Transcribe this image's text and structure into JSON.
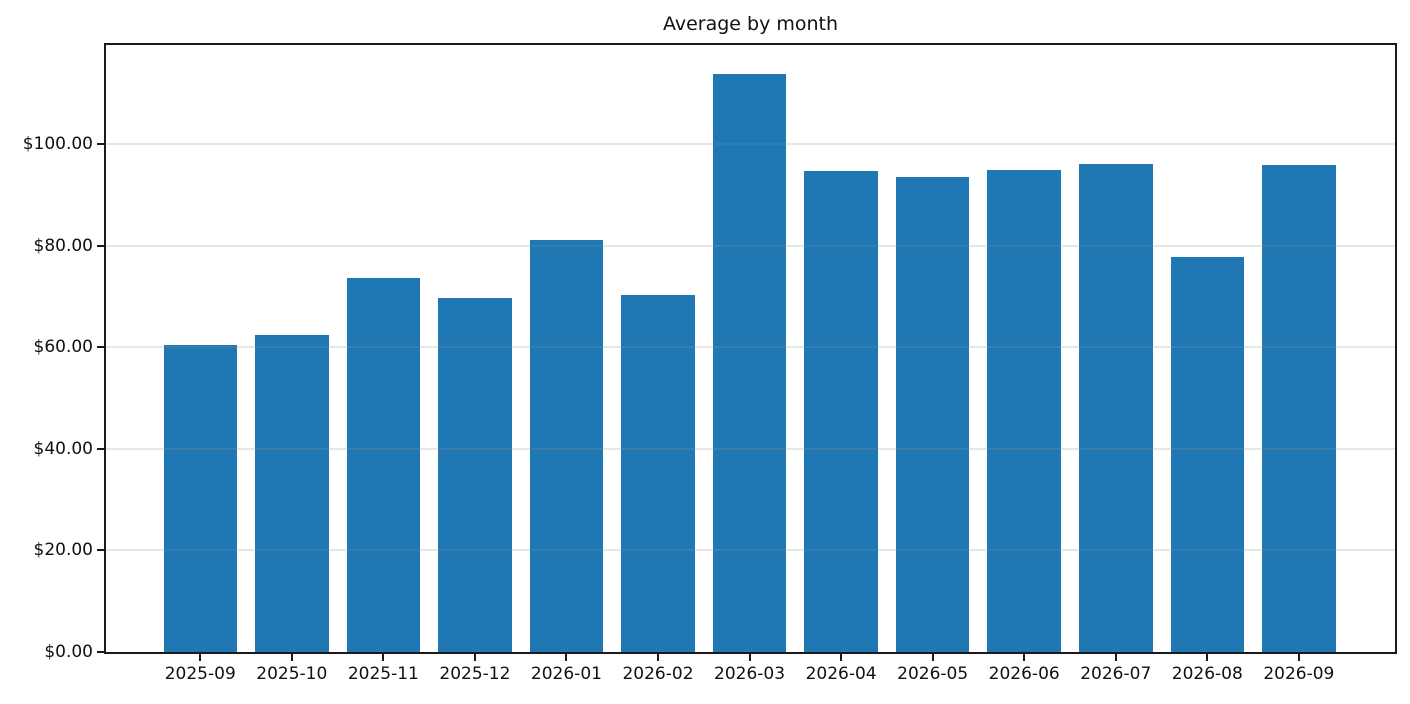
{
  "chart_data": {
    "type": "bar",
    "title": "Average by month",
    "xlabel": "",
    "ylabel": "",
    "categories": [
      "2025-09",
      "2025-10",
      "2025-11",
      "2025-12",
      "2026-01",
      "2026-02",
      "2026-03",
      "2026-04",
      "2026-05",
      "2026-06",
      "2026-07",
      "2026-08",
      "2026-09"
    ],
    "values": [
      60.5,
      62.4,
      73.6,
      69.7,
      81.2,
      70.3,
      113.8,
      94.6,
      93.5,
      94.9,
      96.1,
      77.8,
      95.8
    ],
    "ytick_values": [
      0,
      20,
      40,
      60,
      80,
      100
    ],
    "ytick_labels": [
      "$0.00",
      "$20.00",
      "$40.00",
      "$60.00",
      "$80.00",
      "$100.00"
    ],
    "ylim": [
      0,
      119.5
    ],
    "grid": "horizontal-over-bars",
    "legend": "none",
    "bar_color": "#1f77b4",
    "grid_color": "#e9e9e9",
    "spine_color": "#1a1a1a",
    "text_color": "#111111"
  }
}
